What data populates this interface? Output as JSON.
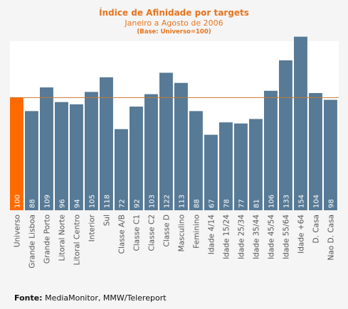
{
  "chart_data": {
    "type": "bar",
    "title": "Índice de Afinidade por targets",
    "subtitle": "Janeiro a Agosto de 2006",
    "note": "(Base: Universo=100)",
    "categories": [
      "Universo",
      "Grande Lisboa",
      "Grande Porto",
      "Litoral Norte",
      "Litoral Centro",
      "Interior",
      "Sul",
      "Classe A/B",
      "Classe C1",
      "Classe C2",
      "Classe D",
      "Masculino",
      "Feminino",
      "Idade 4/14",
      "Idade 15/24",
      "Idade 25/34",
      "Idade 35/44",
      "Idade 45/54",
      "Idade 55/64",
      "Idade +64",
      "D. Casa",
      "Nao D. Casa"
    ],
    "values": [
      100,
      88,
      109,
      96,
      94,
      105,
      118,
      72,
      92,
      103,
      122,
      113,
      88,
      67,
      78,
      77,
      81,
      106,
      133,
      154,
      104,
      98
    ],
    "reference_line": 100,
    "highlight_category": "Universo",
    "ylim": [
      0,
      150
    ],
    "xlabel": "",
    "ylabel": "",
    "grid": false,
    "colors": {
      "bar": "#577a96",
      "highlight": "#ff6a00",
      "reference_line": "#c8782d",
      "plot_background": "#ffffff",
      "text": "#e8741e",
      "value_label": "#ffffff",
      "category_label": "#555555"
    }
  },
  "source": {
    "label": "Fonte:",
    "text": "MediaMonitor, MMW/Telereport"
  }
}
